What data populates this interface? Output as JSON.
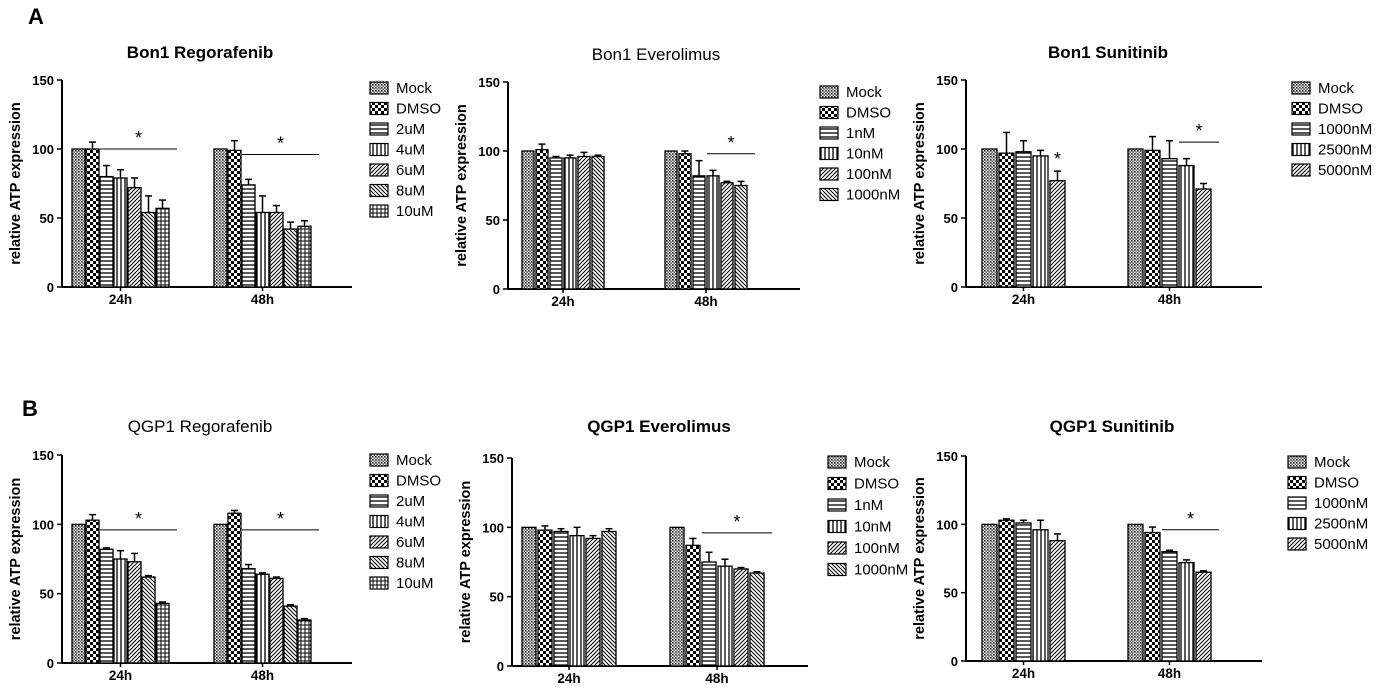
{
  "panels": [
    {
      "letter": "A"
    },
    {
      "letter": "B"
    }
  ],
  "chart_data": [
    {
      "type": "bar",
      "title": "Bon1 Regorafenib",
      "title_bold": true,
      "ylabel": "relative ATP expression",
      "ylim": [
        0,
        150
      ],
      "yticks": [
        0,
        50,
        100,
        150
      ],
      "categories": [
        "24h",
        "48h"
      ],
      "series": [
        {
          "name": "Mock",
          "values": [
            100,
            100
          ],
          "errors": [
            0,
            0
          ]
        },
        {
          "name": "DMSO",
          "values": [
            100,
            99
          ],
          "errors": [
            5,
            7
          ]
        },
        {
          "name": "2uM",
          "values": [
            80,
            74
          ],
          "errors": [
            8,
            4
          ]
        },
        {
          "name": "4uM",
          "values": [
            79,
            54
          ],
          "errors": [
            6,
            12
          ]
        },
        {
          "name": "6uM",
          "values": [
            72,
            54
          ],
          "errors": [
            7,
            5
          ]
        },
        {
          "name": "8uM",
          "values": [
            54,
            42
          ],
          "errors": [
            12,
            5
          ]
        },
        {
          "name": "10uM",
          "values": [
            57,
            44
          ],
          "errors": [
            6,
            4
          ]
        }
      ],
      "significance": [
        {
          "category": "24h",
          "from_series": 2,
          "to_series": 6,
          "label": "*"
        },
        {
          "category": "48h",
          "from_series": 2,
          "to_series": 6,
          "label": "*"
        }
      ],
      "legend_position": "right"
    },
    {
      "type": "bar",
      "title": "Bon1 Everolimus",
      "title_bold": false,
      "ylabel": "relative ATP expression",
      "ylim": [
        0,
        150
      ],
      "yticks": [
        0,
        50,
        100,
        150
      ],
      "categories": [
        "24h",
        "48h"
      ],
      "series": [
        {
          "name": "Mock",
          "values": [
            100,
            100
          ],
          "errors": [
            0,
            0
          ]
        },
        {
          "name": "DMSO",
          "values": [
            101,
            98
          ],
          "errors": [
            4,
            2
          ]
        },
        {
          "name": "1nM",
          "values": [
            95,
            82
          ],
          "errors": [
            1,
            11
          ]
        },
        {
          "name": "10nM",
          "values": [
            95,
            82
          ],
          "errors": [
            2,
            4
          ]
        },
        {
          "name": "100nM",
          "values": [
            96,
            77
          ],
          "errors": [
            3,
            1
          ]
        },
        {
          "name": "1000nM",
          "values": [
            96,
            75
          ],
          "errors": [
            1,
            3
          ]
        }
      ],
      "significance": [
        {
          "category": "48h",
          "from_series": 3,
          "to_series": 5,
          "label": "*"
        }
      ],
      "legend_position": "right"
    },
    {
      "type": "bar",
      "title": "Bon1 Sunitinib",
      "title_bold": true,
      "ylabel": "relative ATP expression",
      "ylim": [
        0,
        150
      ],
      "yticks": [
        0,
        50,
        100,
        150
      ],
      "categories": [
        "24h",
        "48h"
      ],
      "series": [
        {
          "name": "Mock",
          "values": [
            100,
            100
          ],
          "errors": [
            0,
            0
          ]
        },
        {
          "name": "DMSO",
          "values": [
            97,
            99
          ],
          "errors": [
            15,
            10
          ]
        },
        {
          "name": "1000nM",
          "values": [
            98,
            93
          ],
          "errors": [
            8,
            13
          ]
        },
        {
          "name": "2500nM",
          "values": [
            95,
            88
          ],
          "errors": [
            4,
            5
          ]
        },
        {
          "name": "5000nM",
          "values": [
            77,
            71
          ],
          "errors": [
            7,
            4
          ]
        }
      ],
      "significance": [
        {
          "category": "24h",
          "from_series": 4,
          "to_series": 4,
          "label": "*"
        },
        {
          "category": "48h",
          "from_series": 3,
          "to_series": 4,
          "label": "*"
        }
      ],
      "legend_position": "right"
    },
    {
      "type": "bar",
      "title": "QGP1 Regorafenib",
      "title_bold": false,
      "ylabel": "relative ATP expression",
      "ylim": [
        0,
        150
      ],
      "yticks": [
        0,
        50,
        100,
        150
      ],
      "categories": [
        "24h",
        "48h"
      ],
      "series": [
        {
          "name": "Mock",
          "values": [
            100,
            100
          ],
          "errors": [
            0,
            0
          ]
        },
        {
          "name": "DMSO",
          "values": [
            103,
            108
          ],
          "errors": [
            4,
            2
          ]
        },
        {
          "name": "2uM",
          "values": [
            82,
            68
          ],
          "errors": [
            1,
            3
          ]
        },
        {
          "name": "4uM",
          "values": [
            75,
            64
          ],
          "errors": [
            6,
            1
          ]
        },
        {
          "name": "6uM",
          "values": [
            73,
            61
          ],
          "errors": [
            6,
            1
          ]
        },
        {
          "name": "8uM",
          "values": [
            62,
            41
          ],
          "errors": [
            1,
            1
          ]
        },
        {
          "name": "10uM",
          "values": [
            43,
            31
          ],
          "errors": [
            1,
            1
          ]
        }
      ],
      "significance": [
        {
          "category": "24h",
          "from_series": 2,
          "to_series": 6,
          "label": "*"
        },
        {
          "category": "48h",
          "from_series": 2,
          "to_series": 6,
          "label": "*"
        }
      ],
      "legend_position": "right"
    },
    {
      "type": "bar",
      "title": "QGP1 Everolimus",
      "title_bold": true,
      "ylabel": "relative ATP expression",
      "ylim": [
        0,
        150
      ],
      "yticks": [
        0,
        50,
        100,
        150
      ],
      "categories": [
        "24h",
        "48h"
      ],
      "series": [
        {
          "name": "Mock",
          "values": [
            100,
            100
          ],
          "errors": [
            0,
            0
          ]
        },
        {
          "name": "DMSO",
          "values": [
            98,
            87
          ],
          "errors": [
            3,
            5
          ]
        },
        {
          "name": "1nM",
          "values": [
            97,
            75
          ],
          "errors": [
            2,
            7
          ]
        },
        {
          "name": "10nM",
          "values": [
            94,
            72
          ],
          "errors": [
            6,
            5
          ]
        },
        {
          "name": "100nM",
          "values": [
            92,
            70
          ],
          "errors": [
            2,
            1
          ]
        },
        {
          "name": "1000nM",
          "values": [
            97,
            67
          ],
          "errors": [
            2,
            1
          ]
        }
      ],
      "significance": [
        {
          "category": "48h",
          "from_series": 2,
          "to_series": 5,
          "label": "*"
        }
      ],
      "legend_position": "right"
    },
    {
      "type": "bar",
      "title": "QGP1 Sunitinib",
      "title_bold": true,
      "ylabel": "relative ATP expression",
      "ylim": [
        0,
        150
      ],
      "yticks": [
        0,
        50,
        100,
        150
      ],
      "categories": [
        "24h",
        "48h"
      ],
      "series": [
        {
          "name": "Mock",
          "values": [
            100,
            100
          ],
          "errors": [
            0,
            0
          ]
        },
        {
          "name": "DMSO",
          "values": [
            103,
            94
          ],
          "errors": [
            1,
            4
          ]
        },
        {
          "name": "1000nM",
          "values": [
            101,
            80
          ],
          "errors": [
            2,
            1
          ]
        },
        {
          "name": "2500nM",
          "values": [
            96,
            72
          ],
          "errors": [
            7,
            2
          ]
        },
        {
          "name": "5000nM",
          "values": [
            88,
            65
          ],
          "errors": [
            5,
            1
          ]
        }
      ],
      "significance": [
        {
          "category": "48h",
          "from_series": 2,
          "to_series": 4,
          "label": "*"
        }
      ],
      "legend_position": "right"
    }
  ]
}
